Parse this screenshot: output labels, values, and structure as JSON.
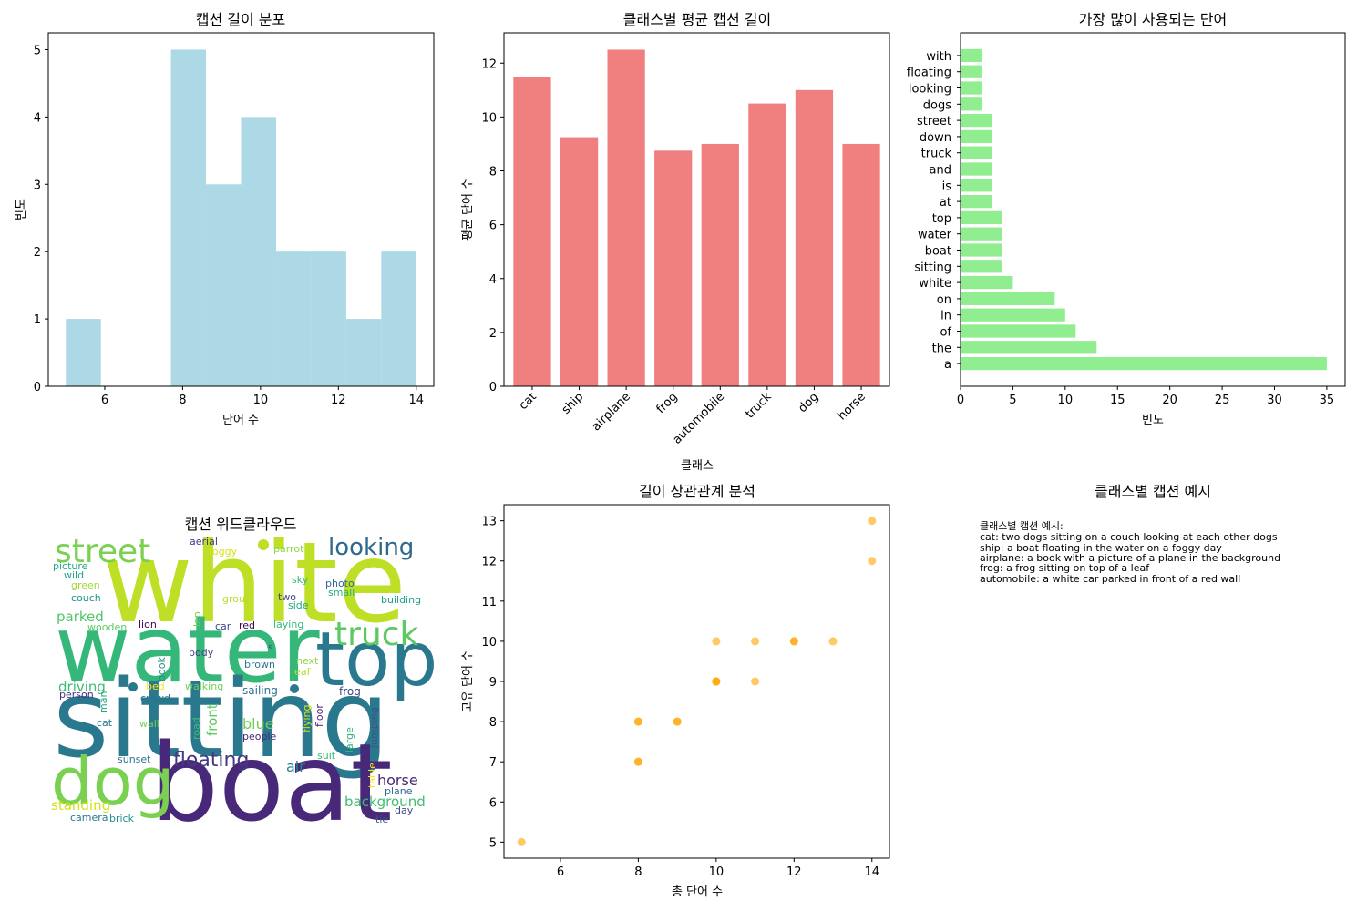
{
  "chart_data": [
    {
      "type": "bar",
      "subtype": "histogram",
      "title": "캡션 길이 분포",
      "xlabel": "단어 수",
      "ylabel": "빈도",
      "color": "#add8e6",
      "bin_edges": [
        5,
        5.9,
        6.8,
        7.7,
        8.6,
        9.5,
        10.4,
        11.3,
        12.2,
        13.1,
        14
      ],
      "counts": [
        1,
        0,
        0,
        5,
        3,
        4,
        2,
        2,
        1,
        2
      ],
      "xlim": [
        4.55,
        14.45
      ],
      "ylim": [
        0,
        5.25
      ],
      "xticks": [
        6,
        8,
        10,
        12,
        14
      ],
      "yticks": [
        0,
        1,
        2,
        3,
        4,
        5
      ]
    },
    {
      "type": "bar",
      "title": "클래스별 평균 캡션 길이",
      "xlabel": "클래스",
      "ylabel": "평균 단어 수",
      "color": "#f08080",
      "categories": [
        "cat",
        "ship",
        "airplane",
        "frog",
        "automobile",
        "truck",
        "dog",
        "horse"
      ],
      "values": [
        11.5,
        9.25,
        12.5,
        8.75,
        9.0,
        10.5,
        11.0,
        9.0
      ],
      "ylim": [
        0,
        13.125
      ],
      "yticks": [
        0,
        2,
        4,
        6,
        8,
        10,
        12
      ]
    },
    {
      "type": "bar",
      "orientation": "horizontal",
      "title": "가장 많이 사용되는 단어",
      "xlabel": "빈도",
      "color": "#90ee90",
      "categories": [
        "a",
        "the",
        "of",
        "in",
        "on",
        "white",
        "sitting",
        "boat",
        "water",
        "top",
        "at",
        "is",
        "and",
        "truck",
        "down",
        "street",
        "dogs",
        "looking",
        "floating",
        "with"
      ],
      "values": [
        35,
        13,
        11,
        10,
        9,
        5,
        4,
        4,
        4,
        4,
        3,
        3,
        3,
        3,
        3,
        3,
        2,
        2,
        2,
        2
      ],
      "xlim": [
        0,
        36.75
      ],
      "xticks": [
        0,
        5,
        10,
        15,
        20,
        25,
        30,
        35
      ]
    },
    {
      "type": "scatter",
      "title": "길이 상관관계 분석",
      "xlabel": "총 단어 수",
      "ylabel": "고유 단어 수",
      "color": "#ffa500",
      "x": [
        5,
        8,
        8,
        8,
        8,
        9,
        9,
        10,
        10,
        10,
        10,
        11,
        11,
        12,
        12,
        13,
        14,
        14
      ],
      "y": [
        5,
        7,
        7,
        8,
        8,
        8,
        8,
        9,
        9,
        9,
        10,
        9,
        10,
        10,
        10,
        10,
        12,
        13
      ],
      "xlim": [
        4.55,
        14.45
      ],
      "ylim": [
        4.6,
        13.4
      ],
      "xticks": [
        6,
        8,
        10,
        12,
        14
      ],
      "yticks": [
        5,
        6,
        7,
        8,
        9,
        10,
        11,
        12,
        13
      ]
    }
  ],
  "wordcloud": {
    "title": "캡션 워드클라우드",
    "words": [
      {
        "text": "white",
        "color": "#bddf26"
      },
      {
        "text": "water",
        "color": "#35b779"
      },
      {
        "text": "sitting",
        "color": "#2a788e"
      },
      {
        "text": "boat",
        "color": "#482878"
      },
      {
        "text": "top",
        "color": "#2a788e"
      },
      {
        "text": "dog",
        "color": "#7ad151"
      },
      {
        "text": "street",
        "color": "#7ad151"
      },
      {
        "text": "truck",
        "color": "#5ec962"
      },
      {
        "text": "looking",
        "color": "#31688e"
      },
      {
        "text": "floating",
        "color": "#443a83"
      },
      {
        "text": "background",
        "color": "#3fbc73"
      },
      {
        "text": "horse",
        "color": "#482878"
      },
      {
        "text": "standing",
        "color": "#d2e21b"
      },
      {
        "text": "parked",
        "color": "#52c569"
      },
      {
        "text": "driving",
        "color": "#3dbc74"
      },
      {
        "text": "blue",
        "color": "#6ece58"
      },
      {
        "text": "air",
        "color": "#26828e"
      },
      {
        "text": "front",
        "color": "#5ec962"
      },
      {
        "text": "sailing",
        "color": "#2c728e"
      },
      {
        "text": "frog",
        "color": "#404688"
      },
      {
        "text": "aerial",
        "color": "#46327e"
      },
      {
        "text": "foggy",
        "color": "#d8e219"
      },
      {
        "text": "parrot",
        "color": "#8fd744"
      },
      {
        "text": "picture",
        "color": "#22a884"
      },
      {
        "text": "wild",
        "color": "#1fa187"
      },
      {
        "text": "green",
        "color": "#a0da39"
      },
      {
        "text": "couch",
        "color": "#21918c"
      },
      {
        "text": "sky",
        "color": "#35b779"
      },
      {
        "text": "photo",
        "color": "#31688e"
      },
      {
        "text": "small",
        "color": "#29af7f"
      },
      {
        "text": "group",
        "color": "#b5de2b"
      },
      {
        "text": "two",
        "color": "#414487"
      },
      {
        "text": "side",
        "color": "#22a884"
      },
      {
        "text": "building",
        "color": "#1f9e89"
      },
      {
        "text": "wooden",
        "color": "#5ec962"
      },
      {
        "text": "lion",
        "color": "#440154"
      },
      {
        "text": "car",
        "color": "#3e4989"
      },
      {
        "text": "red",
        "color": "#440154"
      },
      {
        "text": "laying",
        "color": "#35b779"
      },
      {
        "text": "lap",
        "color": "#7ad151"
      },
      {
        "text": "body",
        "color": "#414487"
      },
      {
        "text": "s",
        "color": "#3b528b"
      },
      {
        "text": "next",
        "color": "#8fd744"
      },
      {
        "text": "brown",
        "color": "#2a788e"
      },
      {
        "text": "leaf",
        "color": "#b5de2b"
      },
      {
        "text": "book",
        "color": "#21918c"
      },
      {
        "text": "walking",
        "color": "#6ece58"
      },
      {
        "text": "bed",
        "color": "#fde725"
      },
      {
        "text": "person",
        "color": "#472d7b"
      },
      {
        "text": "crowd",
        "color": "#2c728e"
      },
      {
        "text": "man",
        "color": "#22a884"
      },
      {
        "text": "cat",
        "color": "#287c8e"
      },
      {
        "text": "wall",
        "color": "#7ad151"
      },
      {
        "text": "road",
        "color": "#3fbc73"
      },
      {
        "text": "flying",
        "color": "#d2e21b"
      },
      {
        "text": "floor",
        "color": "#481f70"
      },
      {
        "text": "large",
        "color": "#2fb47c"
      },
      {
        "text": "jumping",
        "color": "#3b528b"
      },
      {
        "text": "people",
        "color": "#482878"
      },
      {
        "text": "suit",
        "color": "#38b977"
      },
      {
        "text": "table",
        "color": "#fde725"
      },
      {
        "text": "sunset",
        "color": "#2c728e"
      },
      {
        "text": "plane",
        "color": "#31688e"
      },
      {
        "text": "day",
        "color": "#3e4989"
      },
      {
        "text": "camera",
        "color": "#2a788e"
      },
      {
        "text": "brick",
        "color": "#21918c"
      },
      {
        "text": "tie",
        "color": "#3b528b"
      }
    ]
  },
  "examples_panel": {
    "title": "클래스별 캡션 예시",
    "heading": "클래스별 캡션 예시:",
    "lines": [
      "cat: two dogs sitting on a couch looking at each other dogs",
      "ship: a boat floating in the water on a foggy day",
      "airplane: a book with a picture of a plane in the background",
      "frog: a frog sitting on top of a leaf",
      "automobile: a white car parked in front of a red wall"
    ]
  }
}
